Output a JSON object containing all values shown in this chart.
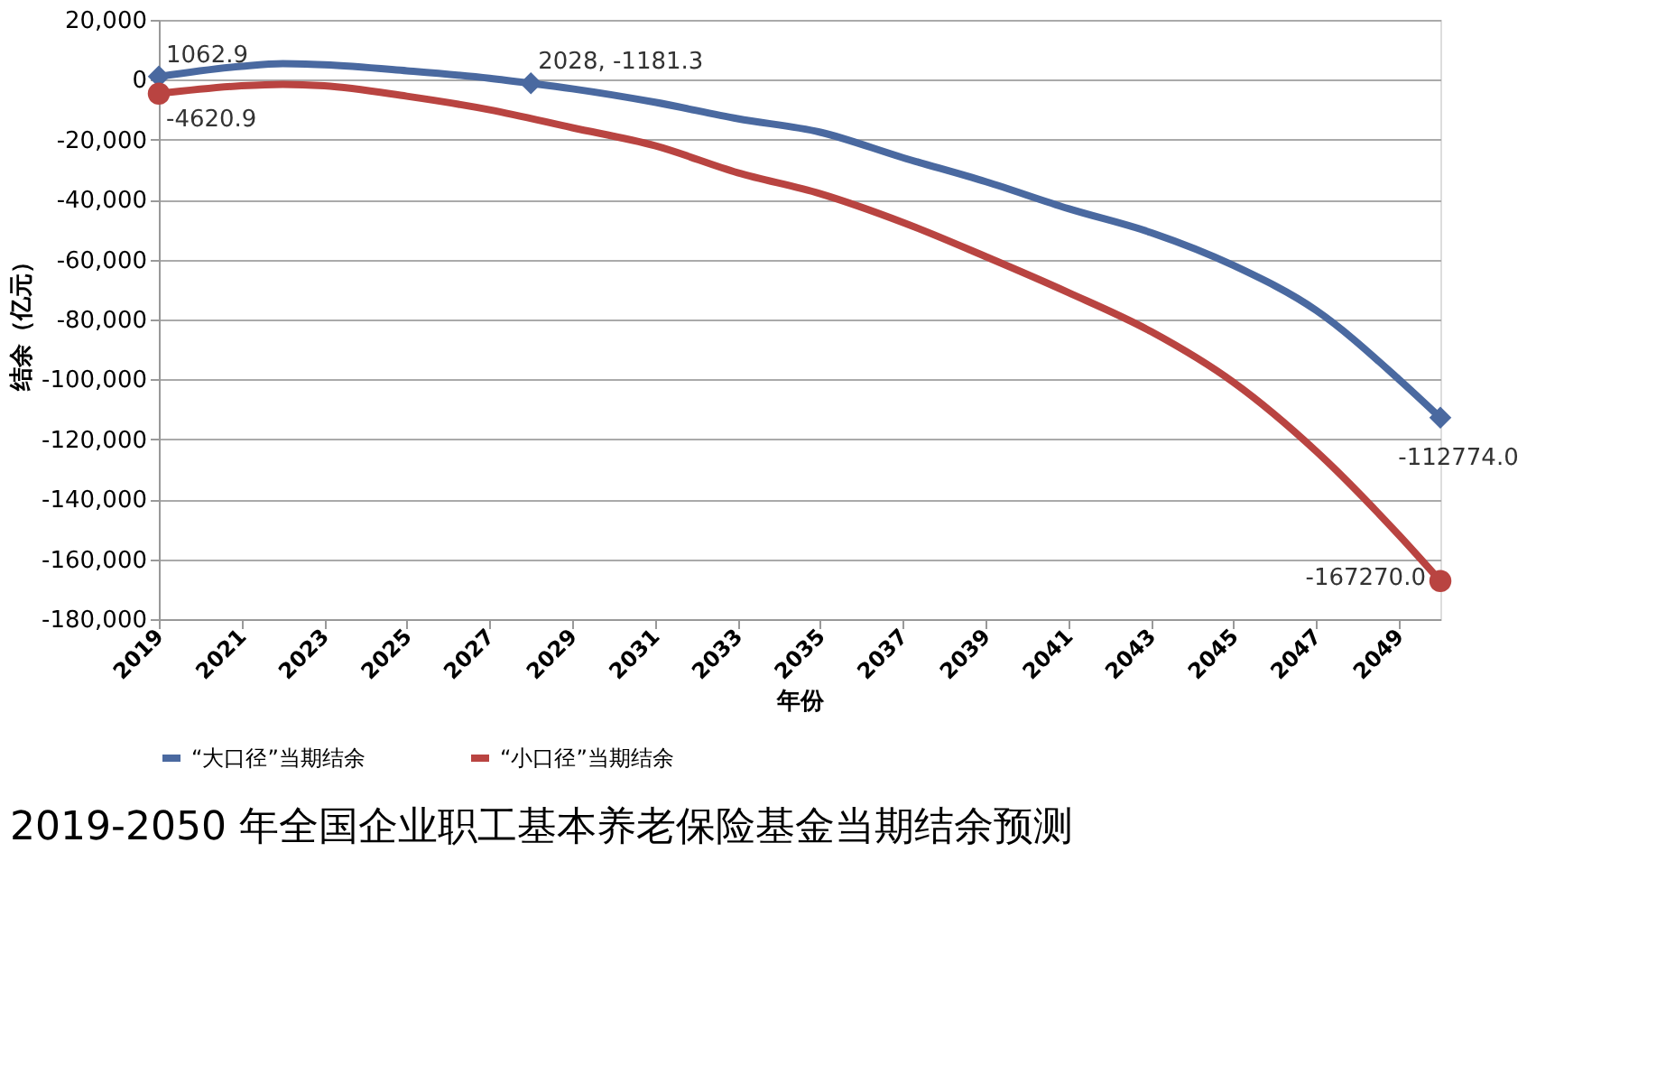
{
  "chart_data": {
    "type": "line",
    "title": "2019-2050 年全国企业职工基本养老保险基金当期结余预测",
    "xlabel": "年份",
    "ylabel": "结余（亿元）",
    "xlim": [
      2019,
      2050
    ],
    "xticks": [
      2019,
      2021,
      2023,
      2025,
      2027,
      2029,
      2031,
      2033,
      2035,
      2037,
      2039,
      2041,
      2043,
      2045,
      2047,
      2049
    ],
    "ylim": [
      -180000,
      20000
    ],
    "yticks": [
      {
        "value": -180000,
        "label": "-180,000"
      },
      {
        "value": -160000,
        "label": "-160,000"
      },
      {
        "value": -140000,
        "label": "-140,000"
      },
      {
        "value": -120000,
        "label": "-120,000"
      },
      {
        "value": -100000,
        "label": "-100,000"
      },
      {
        "value": -80000,
        "label": "-80,000"
      },
      {
        "value": -60000,
        "label": "-60,000"
      },
      {
        "value": -40000,
        "label": "-40,000"
      },
      {
        "value": -20000,
        "label": "-20,000"
      },
      0,
      {
        "value": 20000,
        "label": "20,000"
      }
    ],
    "grid": "y",
    "legend": "bottom",
    "line_style": "solid",
    "series": [
      {
        "name": "“大口径”当期结余",
        "color": "#4a69a0",
        "x": [
          2019,
          2021,
          2022,
          2023,
          2025,
          2027,
          2028,
          2029,
          2031,
          2033,
          2035,
          2037,
          2039,
          2041,
          2043,
          2045,
          2047,
          2049,
          2050
        ],
        "values": [
          1062.9,
          4500,
          5400,
          5000,
          3000,
          500,
          -1181.3,
          -3000,
          -7500,
          -13000,
          -17500,
          -26000,
          -34000,
          -43000,
          -51000,
          -62000,
          -77000,
          -100000,
          -112774.0
        ]
      },
      {
        "name": "“小口径”当期结余",
        "color": "#b94441",
        "x": [
          2019,
          2021,
          2022,
          2023,
          2025,
          2027,
          2029,
          2031,
          2033,
          2035,
          2037,
          2039,
          2041,
          2043,
          2045,
          2047,
          2049,
          2050
        ],
        "values": [
          -4620.9,
          -2000,
          -1500,
          -2000,
          -5500,
          -10000,
          -16000,
          -22000,
          -31000,
          -38000,
          -47600,
          -59000,
          -71000,
          -84000,
          -101000,
          -124000,
          -152000,
          -167270.0
        ]
      },
      {
        "type": "scatter",
        "marker": "diamond",
        "color": "#4a69a0",
        "x": [
          2019,
          2028,
          2050
        ],
        "values": [
          1062.9,
          -1181.3,
          -112774.0
        ],
        "value_labels": [
          "1062.9",
          "2028, -1181.3",
          "-112774.0"
        ]
      },
      {
        "type": "scatter",
        "marker": "circle",
        "color": "#b94441",
        "x": [
          2019,
          2050
        ],
        "values": [
          -4620.9,
          -167270.0
        ],
        "value_labels": [
          "-4620.9",
          "-167270.0"
        ]
      }
    ]
  }
}
